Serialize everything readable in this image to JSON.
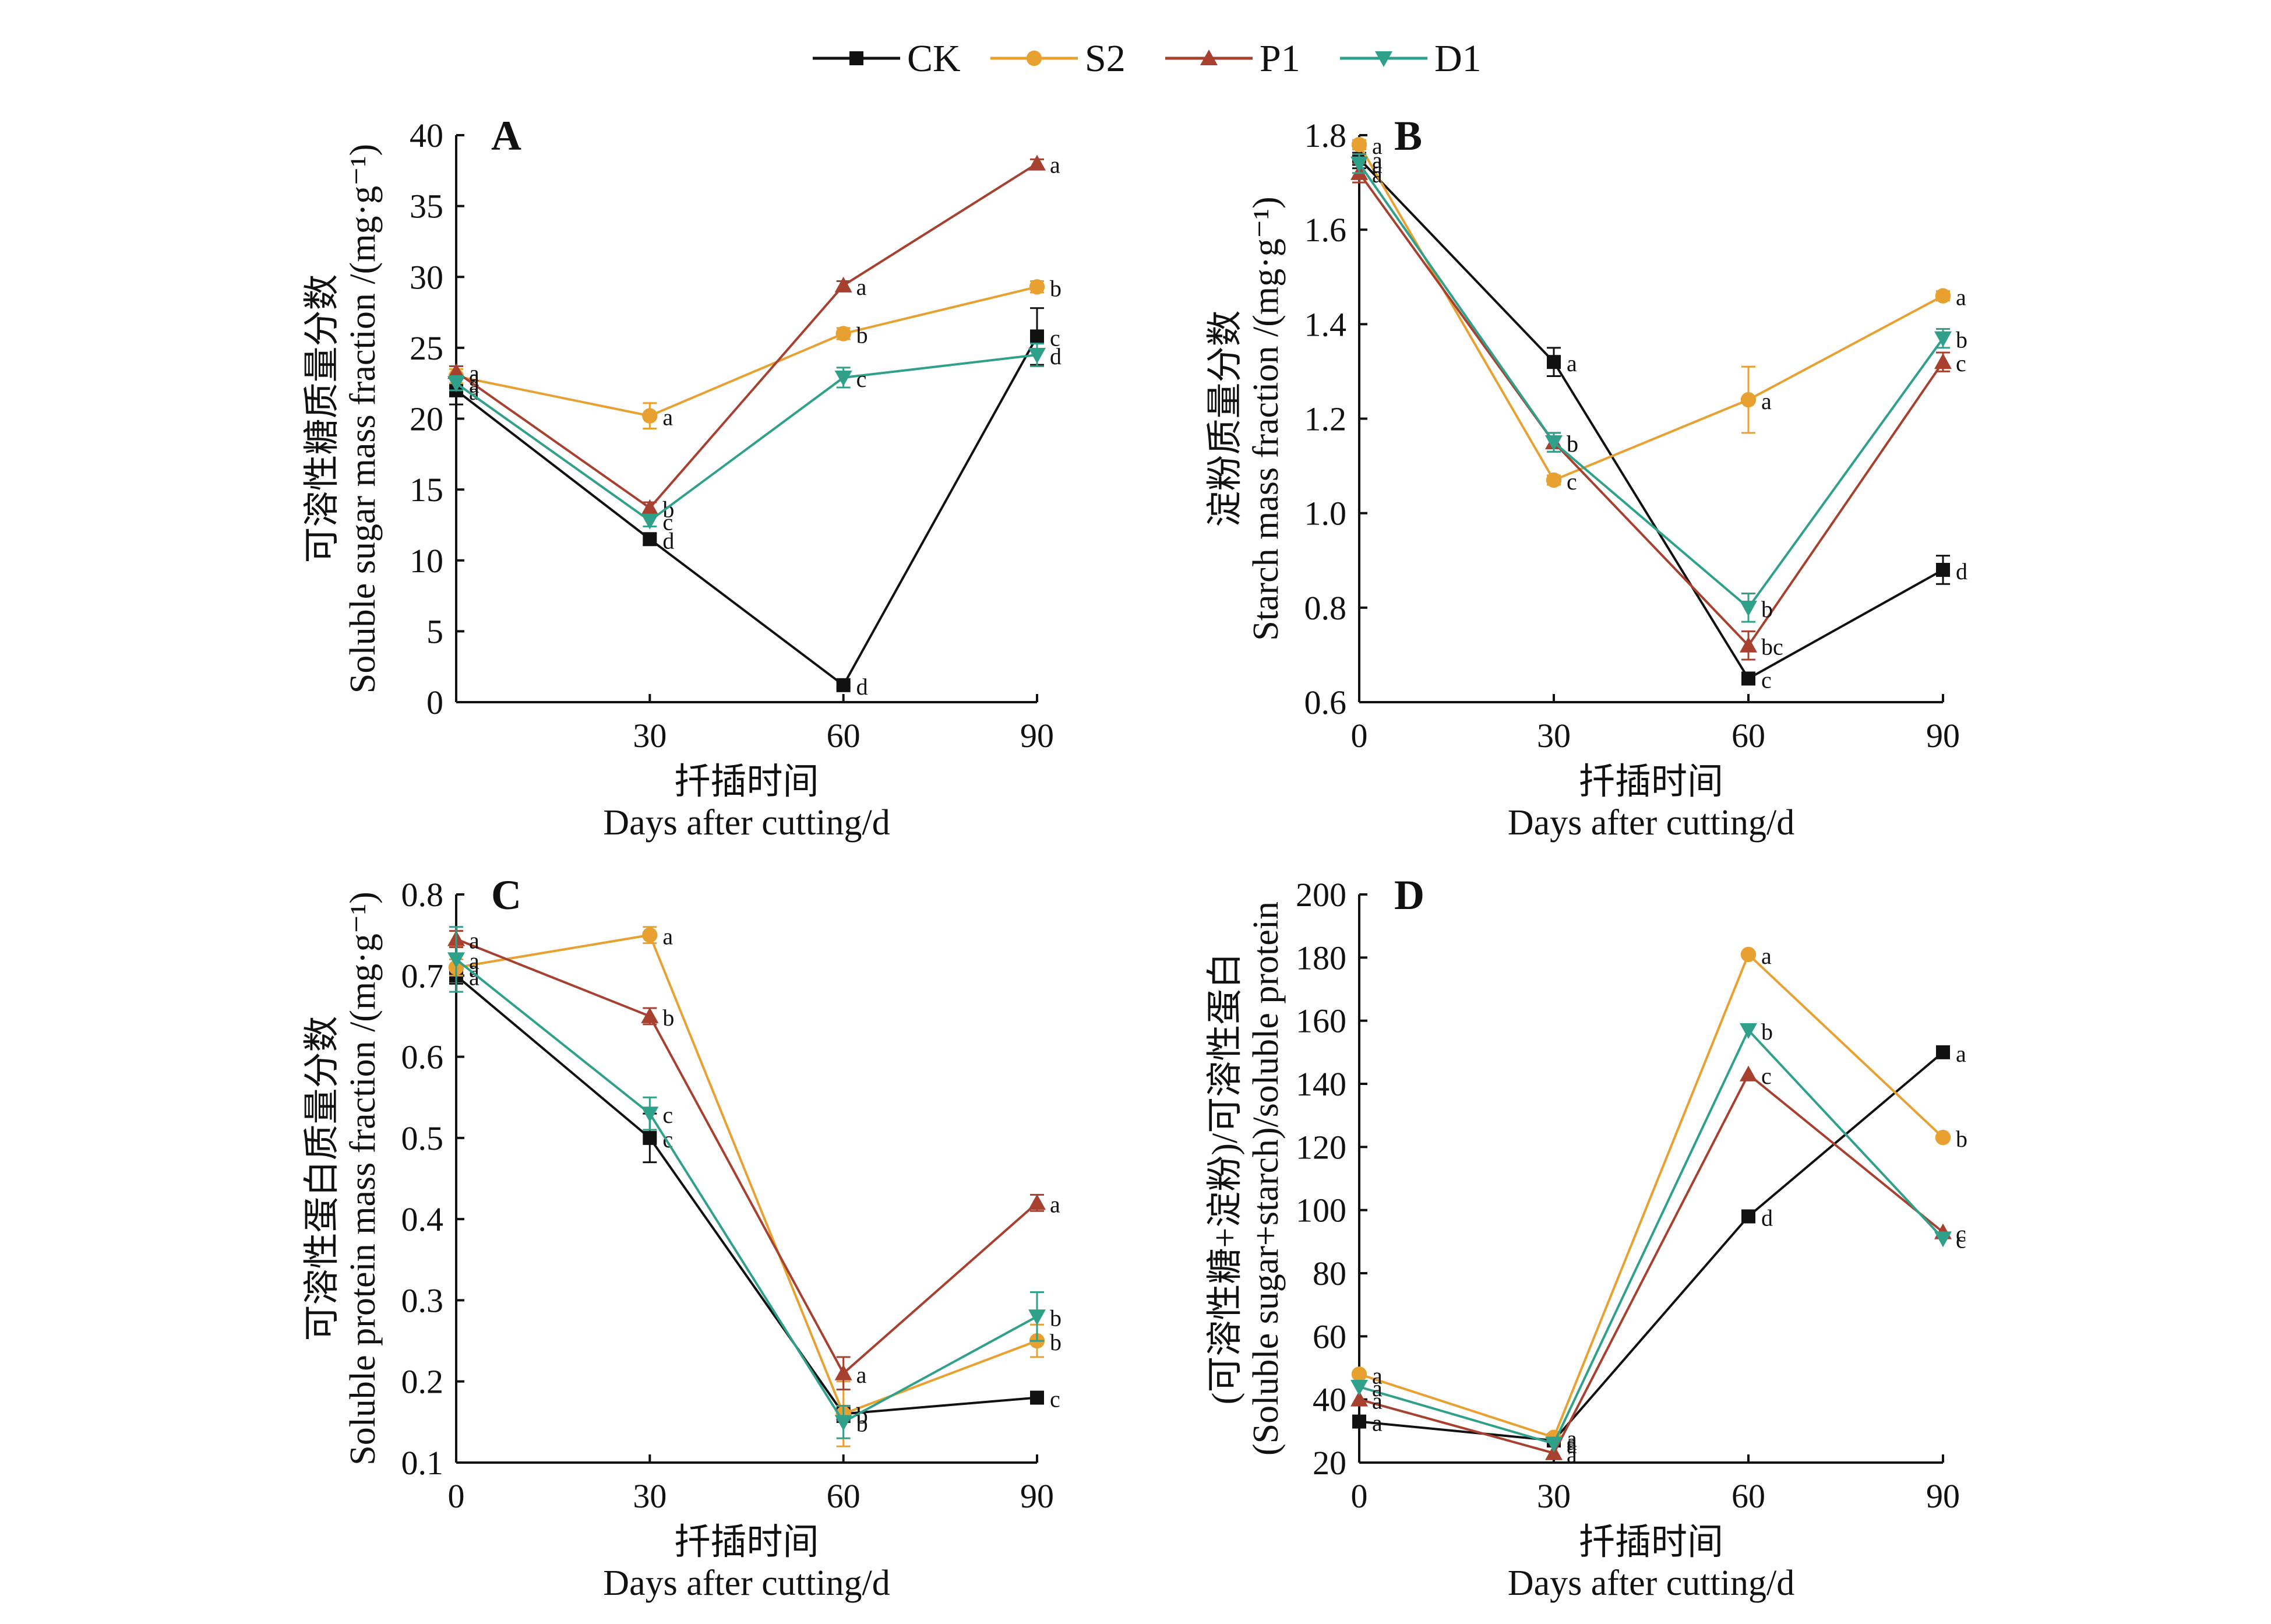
{
  "legend": [
    {
      "name": "CK",
      "color": "#111111",
      "marker": "square"
    },
    {
      "name": "S2",
      "color": "#E8A030",
      "marker": "circle"
    },
    {
      "name": "P1",
      "color": "#A84030",
      "marker": "triangle-up"
    },
    {
      "name": "D1",
      "color": "#2FA08A",
      "marker": "triangle-down"
    }
  ],
  "chart_data": [
    {
      "type": "line",
      "panel": "A",
      "xlabel": [
        "扦插时间",
        "Days after cutting/d"
      ],
      "ylabel": [
        "可溶性糖质量分数",
        "Soluble sugar mass fraction /(mg·g⁻¹)"
      ],
      "x": [
        0,
        30,
        60,
        90
      ],
      "x_ticks": [
        "",
        "30",
        "60",
        "90"
      ],
      "xlim": [
        0,
        90
      ],
      "ylim": [
        0,
        40
      ],
      "y_ticks": [
        "0",
        "5",
        "10",
        "15",
        "20",
        "25",
        "30",
        "35",
        "40"
      ],
      "grid": false,
      "series": [
        {
          "name": "CK",
          "values": [
            22,
            11.5,
            1.2,
            25.8
          ],
          "err": [
            1.0,
            0.4,
            0.2,
            2.0
          ],
          "labels": [
            "a",
            "d",
            "d",
            "c"
          ]
        },
        {
          "name": "S2",
          "values": [
            23,
            20.2,
            26,
            29.3
          ],
          "err": [
            0.5,
            0.9,
            0.4,
            0.4
          ],
          "labels": [
            "a",
            "a",
            "b",
            "b"
          ]
        },
        {
          "name": "P1",
          "values": [
            23.3,
            13.7,
            29.4,
            38
          ],
          "err": [
            0.4,
            0.4,
            0.3,
            0.3
          ],
          "labels": [
            "a",
            "b",
            "a",
            "a"
          ]
        },
        {
          "name": "D1",
          "values": [
            22.5,
            12.8,
            22.9,
            24.5
          ],
          "err": [
            0.5,
            0.4,
            0.7,
            0.8
          ],
          "labels": [
            "a",
            "c",
            "c",
            "d"
          ]
        }
      ]
    },
    {
      "type": "line",
      "panel": "B",
      "xlabel": [
        "扦插时间",
        "Days after cutting/d"
      ],
      "ylabel": [
        "淀粉质量分数",
        "Starch mass fraction /(mg·g⁻¹)"
      ],
      "x": [
        0,
        30,
        60,
        90
      ],
      "x_ticks": [
        "0",
        "30",
        "60",
        "90"
      ],
      "xlim": [
        0,
        90
      ],
      "ylim": [
        0.6,
        1.8
      ],
      "y_ticks": [
        "0.6",
        "0.8",
        "1.0",
        "1.2",
        "1.4",
        "1.6",
        "1.8"
      ],
      "grid": false,
      "series": [
        {
          "name": "CK",
          "values": [
            1.75,
            1.32,
            0.65,
            0.88
          ],
          "err": [
            0.02,
            0.03,
            0.01,
            0.03
          ],
          "labels": [
            "a",
            "a",
            "c",
            "d"
          ]
        },
        {
          "name": "S2",
          "values": [
            1.78,
            1.07,
            1.24,
            1.46
          ],
          "err": [
            0.01,
            0.01,
            0.07,
            0.01
          ],
          "labels": [
            "a",
            "c",
            "a",
            "a"
          ]
        },
        {
          "name": "P1",
          "values": [
            1.72,
            1.15,
            0.72,
            1.32
          ],
          "err": [
            0.02,
            0.02,
            0.03,
            0.02
          ],
          "labels": [
            "a",
            "b",
            "bc",
            "c"
          ]
        },
        {
          "name": "D1",
          "values": [
            1.74,
            1.15,
            0.8,
            1.37
          ],
          "err": [
            0.02,
            0.02,
            0.03,
            0.02
          ],
          "labels": [
            "a",
            "b",
            "b",
            "b"
          ]
        }
      ]
    },
    {
      "type": "line",
      "panel": "C",
      "xlabel": [
        "扦插时间",
        "Days after cutting/d"
      ],
      "ylabel": [
        "可溶性蛋白质量分数",
        "Soluble protein mass fraction /(mg·g⁻¹)"
      ],
      "x": [
        0,
        30,
        60,
        90
      ],
      "x_ticks": [
        "0",
        "30",
        "60",
        "90"
      ],
      "xlim": [
        0,
        90
      ],
      "ylim": [
        0.1,
        0.8
      ],
      "y_ticks": [
        "0.1",
        "0.2",
        "0.3",
        "0.4",
        "0.5",
        "0.6",
        "0.7",
        "0.8"
      ],
      "grid": false,
      "series": [
        {
          "name": "CK",
          "values": [
            0.7,
            0.5,
            0.16,
            0.18
          ],
          "err": [
            0.01,
            0.03,
            0.01,
            0.005
          ],
          "labels": [
            "a",
            "c",
            "b",
            "c"
          ]
        },
        {
          "name": "S2",
          "values": [
            0.71,
            0.75,
            0.16,
            0.25
          ],
          "err": [
            0.01,
            0.01,
            0.04,
            0.02
          ],
          "labels": [
            "a",
            "a",
            "b",
            "b"
          ]
        },
        {
          "name": "P1",
          "values": [
            0.745,
            0.65,
            0.21,
            0.42
          ],
          "err": [
            0.01,
            0.01,
            0.02,
            0.01
          ],
          "labels": [
            "a",
            "b",
            "a",
            "a"
          ]
        },
        {
          "name": "D1",
          "values": [
            0.72,
            0.53,
            0.15,
            0.28
          ],
          "err": [
            0.04,
            0.02,
            0.02,
            0.03
          ],
          "labels": [
            "a",
            "c",
            "b",
            "b"
          ]
        }
      ]
    },
    {
      "type": "line",
      "panel": "D",
      "xlabel": [
        "扦插时间",
        "Days after cutting/d"
      ],
      "ylabel": [
        "(可溶性糖+淀粉)/可溶性蛋白",
        "(Soluble sugar+starch)/soluble protein"
      ],
      "x": [
        0,
        30,
        60,
        90
      ],
      "x_ticks": [
        "0",
        "30",
        "60",
        "90"
      ],
      "xlim": [
        0,
        90
      ],
      "ylim": [
        20,
        200
      ],
      "y_ticks": [
        "20",
        "40",
        "60",
        "80",
        "100",
        "120",
        "140",
        "160",
        "180",
        "200"
      ],
      "grid": false,
      "series": [
        {
          "name": "CK",
          "values": [
            33,
            27,
            98,
            150
          ],
          "err": [
            0,
            0,
            0,
            0
          ],
          "labels": [
            "a",
            "a",
            "d",
            "a"
          ]
        },
        {
          "name": "S2",
          "values": [
            48,
            28,
            181,
            123
          ],
          "err": [
            0,
            0,
            0,
            0
          ],
          "labels": [
            "a",
            "a",
            "a",
            "b"
          ]
        },
        {
          "name": "P1",
          "values": [
            40,
            23,
            143,
            93
          ],
          "err": [
            0,
            0,
            0,
            0
          ],
          "labels": [
            "a",
            "a",
            "c",
            "c"
          ]
        },
        {
          "name": "D1",
          "values": [
            44,
            26,
            157,
            91
          ],
          "err": [
            0,
            0,
            0,
            0
          ],
          "labels": [
            "a",
            "a",
            "b",
            "c"
          ]
        }
      ]
    }
  ]
}
